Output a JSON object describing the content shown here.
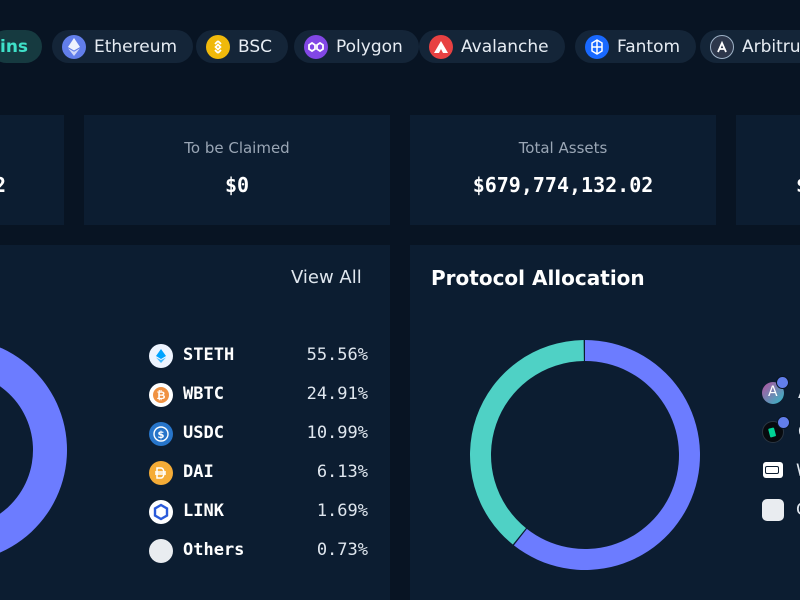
{
  "chains": [
    {
      "label": "ins",
      "icon": "all-chains-icon",
      "active": true
    },
    {
      "label": "Ethereum",
      "icon": "ethereum-icon",
      "color": "#627eea"
    },
    {
      "label": "BSC",
      "icon": "bsc-icon",
      "color": "#f0b90b"
    },
    {
      "label": "Polygon",
      "icon": "polygon-icon",
      "color": "#8247e5"
    },
    {
      "label": "Avalanche",
      "icon": "avalanche-icon",
      "color": "#e84142"
    },
    {
      "label": "Fantom",
      "icon": "fantom-icon",
      "color": "#1969ff"
    },
    {
      "label": "Arbitrum",
      "icon": "arbitrum-icon",
      "color": "#2d374b"
    }
  ],
  "stats": {
    "left_value_fragment": "2",
    "to_be_claimed": {
      "label": "To be Claimed",
      "value": "$0"
    },
    "total_assets": {
      "label": "Total Assets",
      "value": "$679,774,132.02"
    },
    "right_value_fragment": "$"
  },
  "token_panel": {
    "view_all": "View All",
    "assets": [
      {
        "symbol": "STETH",
        "percent": "55.56%",
        "share": 55.56,
        "icon": "steth-icon",
        "color": "#6c7cff"
      },
      {
        "symbol": "WBTC",
        "percent": "24.91%",
        "share": 24.91,
        "icon": "wbtc-icon",
        "color": "#f7b924"
      },
      {
        "symbol": "USDC",
        "percent": "10.99%",
        "share": 10.99,
        "icon": "usdc-icon",
        "color": "#9b5fd8"
      },
      {
        "symbol": "DAI",
        "percent": "6.13%",
        "share": 6.13,
        "icon": "dai-icon",
        "color": "#f5a623"
      },
      {
        "symbol": "LINK",
        "percent": "1.69%",
        "share": 1.69,
        "icon": "link-icon",
        "color": "#ff8a3d"
      },
      {
        "symbol": "Others",
        "percent": "0.73%",
        "share": 0.73,
        "icon": "others-icon",
        "color": "#c9ced6"
      }
    ]
  },
  "protocol_panel": {
    "title": "Protocol Allocation",
    "segments": [
      {
        "share": 60.8,
        "color": "#6c7cff"
      },
      {
        "share": 39.2,
        "color": "#4fd1c5"
      }
    ],
    "legend": [
      {
        "icon": "aave-icon",
        "letter": "A"
      },
      {
        "icon": "compound-icon",
        "letter": "C"
      },
      {
        "icon": "wallet-icon",
        "letter": "W"
      },
      {
        "icon": "other-protocol-icon",
        "letter": "O"
      }
    ]
  }
}
